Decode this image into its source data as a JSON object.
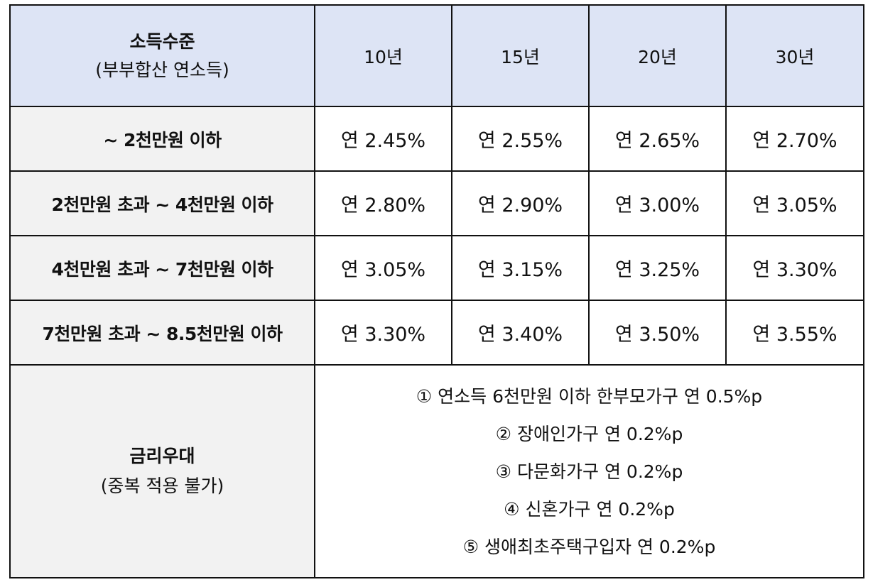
{
  "header": {
    "income_title": "소득수준",
    "income_sub": "(부부합산 연소득)",
    "terms": [
      "10년",
      "15년",
      "20년",
      "30년"
    ]
  },
  "rows": [
    {
      "label": "~ 2천만원 이하",
      "rates": [
        "연 2.45%",
        "연 2.55%",
        "연 2.65%",
        "연 2.70%"
      ]
    },
    {
      "label": "2천만원 초과 ~ 4천만원 이하",
      "rates": [
        "연 2.80%",
        "연 2.90%",
        "연 3.00%",
        "연 3.05%"
      ]
    },
    {
      "label": "4천만원 초과 ~ 7천만원 이하",
      "rates": [
        "연 3.05%",
        "연 3.15%",
        "연 3.25%",
        "연 3.30%"
      ]
    },
    {
      "label": "7천만원 초과 ~ 8.5천만원 이하",
      "rates": [
        "연 3.30%",
        "연 3.40%",
        "연 3.50%",
        "연 3.55%"
      ]
    }
  ],
  "preference": {
    "title": "금리우대",
    "sub": "(중복 적용 불가)",
    "items": [
      "① 연소득 6천만원 이하 한부모가구 연 0.5%p",
      "② 장애인가구 연 0.2%p",
      "③ 다문화가구 연 0.2%p",
      "④ 신혼가구 연 0.2%p",
      "⑤ 생애최초주택구입자 연 0.2%p"
    ]
  },
  "colors": {
    "header_bg": "#dde4f5",
    "label_bg": "#f2f2f2",
    "border": "#111111"
  }
}
